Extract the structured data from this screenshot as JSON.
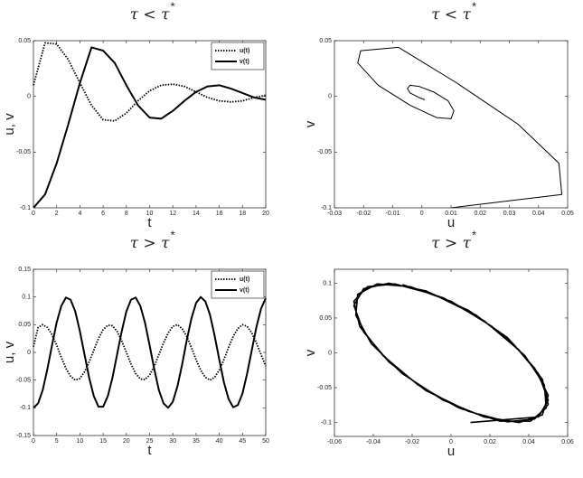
{
  "chart_data": [
    {
      "type": "line",
      "title": "τ < τ",
      "title_sup": "*",
      "xlabel": "t",
      "ylabel": "u, v",
      "x": [
        0,
        1,
        2,
        3,
        4,
        5,
        6,
        7,
        8,
        9,
        10,
        11,
        12,
        13,
        14,
        15,
        16,
        17,
        18,
        19,
        20
      ],
      "series": [
        {
          "name": "u(t)",
          "color": "#000000",
          "dash": "dotted",
          "values": [
            0.01,
            0.048,
            0.047,
            0.033,
            0.012,
            -0.008,
            -0.021,
            -0.022,
            -0.015,
            -0.004,
            0.005,
            0.01,
            0.011,
            0.009,
            0.004,
            -0.001,
            -0.004,
            -0.005,
            -0.004,
            -0.001,
            0.001
          ]
        },
        {
          "name": "v(t)",
          "color": "#000000",
          "dash": "solid",
          "values": [
            -0.1,
            -0.088,
            -0.06,
            -0.025,
            0.012,
            0.044,
            0.041,
            0.03,
            0.01,
            -0.008,
            -0.019,
            -0.02,
            -0.013,
            -0.004,
            0.004,
            0.009,
            0.01,
            0.007,
            0.003,
            -0.001,
            -0.003
          ]
        }
      ],
      "xlim": [
        0,
        20
      ],
      "xticks": [
        0,
        2,
        4,
        6,
        8,
        10,
        12,
        14,
        16,
        18,
        20
      ],
      "ylim": [
        -0.1,
        0.05
      ],
      "yticks": [
        -0.1,
        -0.05,
        0,
        0.05
      ],
      "legend": "upper right"
    },
    {
      "type": "line",
      "title": "τ < τ",
      "title_sup": "*",
      "xlabel": "u",
      "ylabel": "v",
      "x": [
        0.01,
        0.048,
        0.047,
        0.033,
        0.012,
        -0.008,
        -0.021,
        -0.022,
        -0.015,
        -0.004,
        0.005,
        0.01,
        0.011,
        0.009,
        0.004,
        -0.001,
        -0.004,
        -0.005,
        -0.004,
        -0.001,
        0.001
      ],
      "series": [
        {
          "color": "#000000",
          "dash": "thin",
          "values": [
            -0.1,
            -0.088,
            -0.06,
            -0.025,
            0.012,
            0.044,
            0.041,
            0.03,
            0.01,
            -0.008,
            -0.019,
            -0.02,
            -0.013,
            -0.004,
            0.004,
            0.009,
            0.01,
            0.007,
            0.003,
            -0.001,
            -0.003
          ]
        }
      ],
      "xlim": [
        -0.03,
        0.05
      ],
      "xticks": [
        -0.03,
        -0.02,
        -0.01,
        0,
        0.01,
        0.02,
        0.03,
        0.04,
        0.05
      ],
      "ylim": [
        -0.1,
        0.05
      ],
      "yticks": [
        -0.1,
        -0.05,
        0,
        0.05
      ]
    },
    {
      "type": "line",
      "title": "τ > τ",
      "title_sup": "*",
      "xlabel": "t",
      "ylabel": "u, v",
      "x": [
        0,
        1,
        2,
        3,
        4,
        5,
        6,
        7,
        8,
        9,
        10,
        11,
        12,
        13,
        14,
        15,
        16,
        17,
        18,
        19,
        20,
        21,
        22,
        23,
        24,
        25,
        26,
        27,
        28,
        29,
        30,
        31,
        32,
        33,
        34,
        35,
        36,
        37,
        38,
        39,
        40,
        41,
        42,
        43,
        44,
        45,
        46,
        47,
        48,
        49,
        50
      ],
      "series": [
        {
          "name": "u(t)",
          "color": "#000000",
          "dash": "dotted",
          "values": [
            0.01,
            0.045,
            0.05,
            0.045,
            0.032,
            0.013,
            -0.009,
            -0.029,
            -0.043,
            -0.05,
            -0.047,
            -0.035,
            -0.017,
            0.004,
            0.025,
            0.041,
            0.049,
            0.048,
            0.038,
            0.021,
            0.0,
            -0.021,
            -0.038,
            -0.048,
            -0.049,
            -0.041,
            -0.025,
            -0.004,
            0.017,
            0.035,
            0.047,
            0.05,
            0.043,
            0.029,
            0.009,
            -0.013,
            -0.032,
            -0.045,
            -0.05,
            -0.045,
            -0.032,
            -0.013,
            0.009,
            0.029,
            0.043,
            0.05,
            0.047,
            0.035,
            0.017,
            -0.004,
            -0.025
          ]
        },
        {
          "name": "v(t)",
          "color": "#000000",
          "dash": "solid",
          "values": [
            -0.1,
            -0.092,
            -0.068,
            -0.03,
            0.013,
            0.054,
            0.084,
            0.099,
            0.095,
            0.074,
            0.038,
            -0.004,
            -0.046,
            -0.079,
            -0.098,
            -0.098,
            -0.079,
            -0.046,
            -0.004,
            0.038,
            0.074,
            0.095,
            0.099,
            0.084,
            0.054,
            0.013,
            -0.03,
            -0.068,
            -0.092,
            -0.1,
            -0.089,
            -0.061,
            -0.022,
            0.022,
            0.061,
            0.089,
            0.1,
            0.092,
            0.068,
            0.03,
            -0.013,
            -0.054,
            -0.084,
            -0.099,
            -0.095,
            -0.074,
            -0.038,
            0.004,
            0.046,
            0.079,
            0.098
          ]
        }
      ],
      "xlim": [
        0,
        50
      ],
      "xticks": [
        0,
        5,
        10,
        15,
        20,
        25,
        30,
        35,
        40,
        45,
        50
      ],
      "ylim": [
        -0.15,
        0.15
      ],
      "yticks": [
        -0.15,
        -0.1,
        -0.05,
        0,
        0.05,
        0.1,
        0.15
      ],
      "legend": "upper right"
    },
    {
      "type": "line",
      "title": "τ > τ",
      "title_sup": "*",
      "xlabel": "u",
      "ylabel": "v",
      "x": [
        0.01,
        0.045,
        0.05,
        0.045,
        0.032,
        0.013,
        -0.009,
        -0.029,
        -0.043,
        -0.05,
        -0.047,
        -0.035,
        -0.017,
        0.004,
        0.025,
        0.041,
        0.049,
        0.048,
        0.038,
        0.021,
        0.0,
        -0.021,
        -0.038,
        -0.048,
        -0.049,
        -0.041,
        -0.025,
        -0.004,
        0.017,
        0.035,
        0.047,
        0.05,
        0.043,
        0.029,
        0.009,
        -0.013,
        -0.032,
        -0.045,
        -0.05,
        -0.045,
        -0.032,
        -0.013,
        0.009,
        0.029,
        0.043,
        0.05,
        0.047,
        0.035,
        0.017,
        -0.004,
        -0.025
      ],
      "series": [
        {
          "color": "#000000",
          "dash": "medium",
          "values": [
            -0.1,
            -0.092,
            -0.068,
            -0.03,
            0.013,
            0.054,
            0.084,
            0.099,
            0.095,
            0.074,
            0.038,
            -0.004,
            -0.046,
            -0.079,
            -0.098,
            -0.098,
            -0.079,
            -0.046,
            -0.004,
            0.038,
            0.074,
            0.095,
            0.099,
            0.084,
            0.054,
            0.013,
            -0.03,
            -0.068,
            -0.092,
            -0.1,
            -0.089,
            -0.061,
            -0.022,
            0.022,
            0.061,
            0.089,
            0.1,
            0.092,
            0.068,
            0.03,
            -0.013,
            -0.054,
            -0.084,
            -0.099,
            -0.095,
            -0.074,
            -0.038,
            0.004,
            0.046,
            0.079,
            0.098
          ]
        }
      ],
      "xlim": [
        -0.06,
        0.06
      ],
      "xticks": [
        -0.06,
        -0.04,
        -0.02,
        0,
        0.02,
        0.04,
        0.06
      ],
      "ylim": [
        -0.12,
        0.12
      ],
      "yticks": [
        -0.1,
        -0.05,
        0,
        0.05,
        0.1
      ]
    }
  ]
}
